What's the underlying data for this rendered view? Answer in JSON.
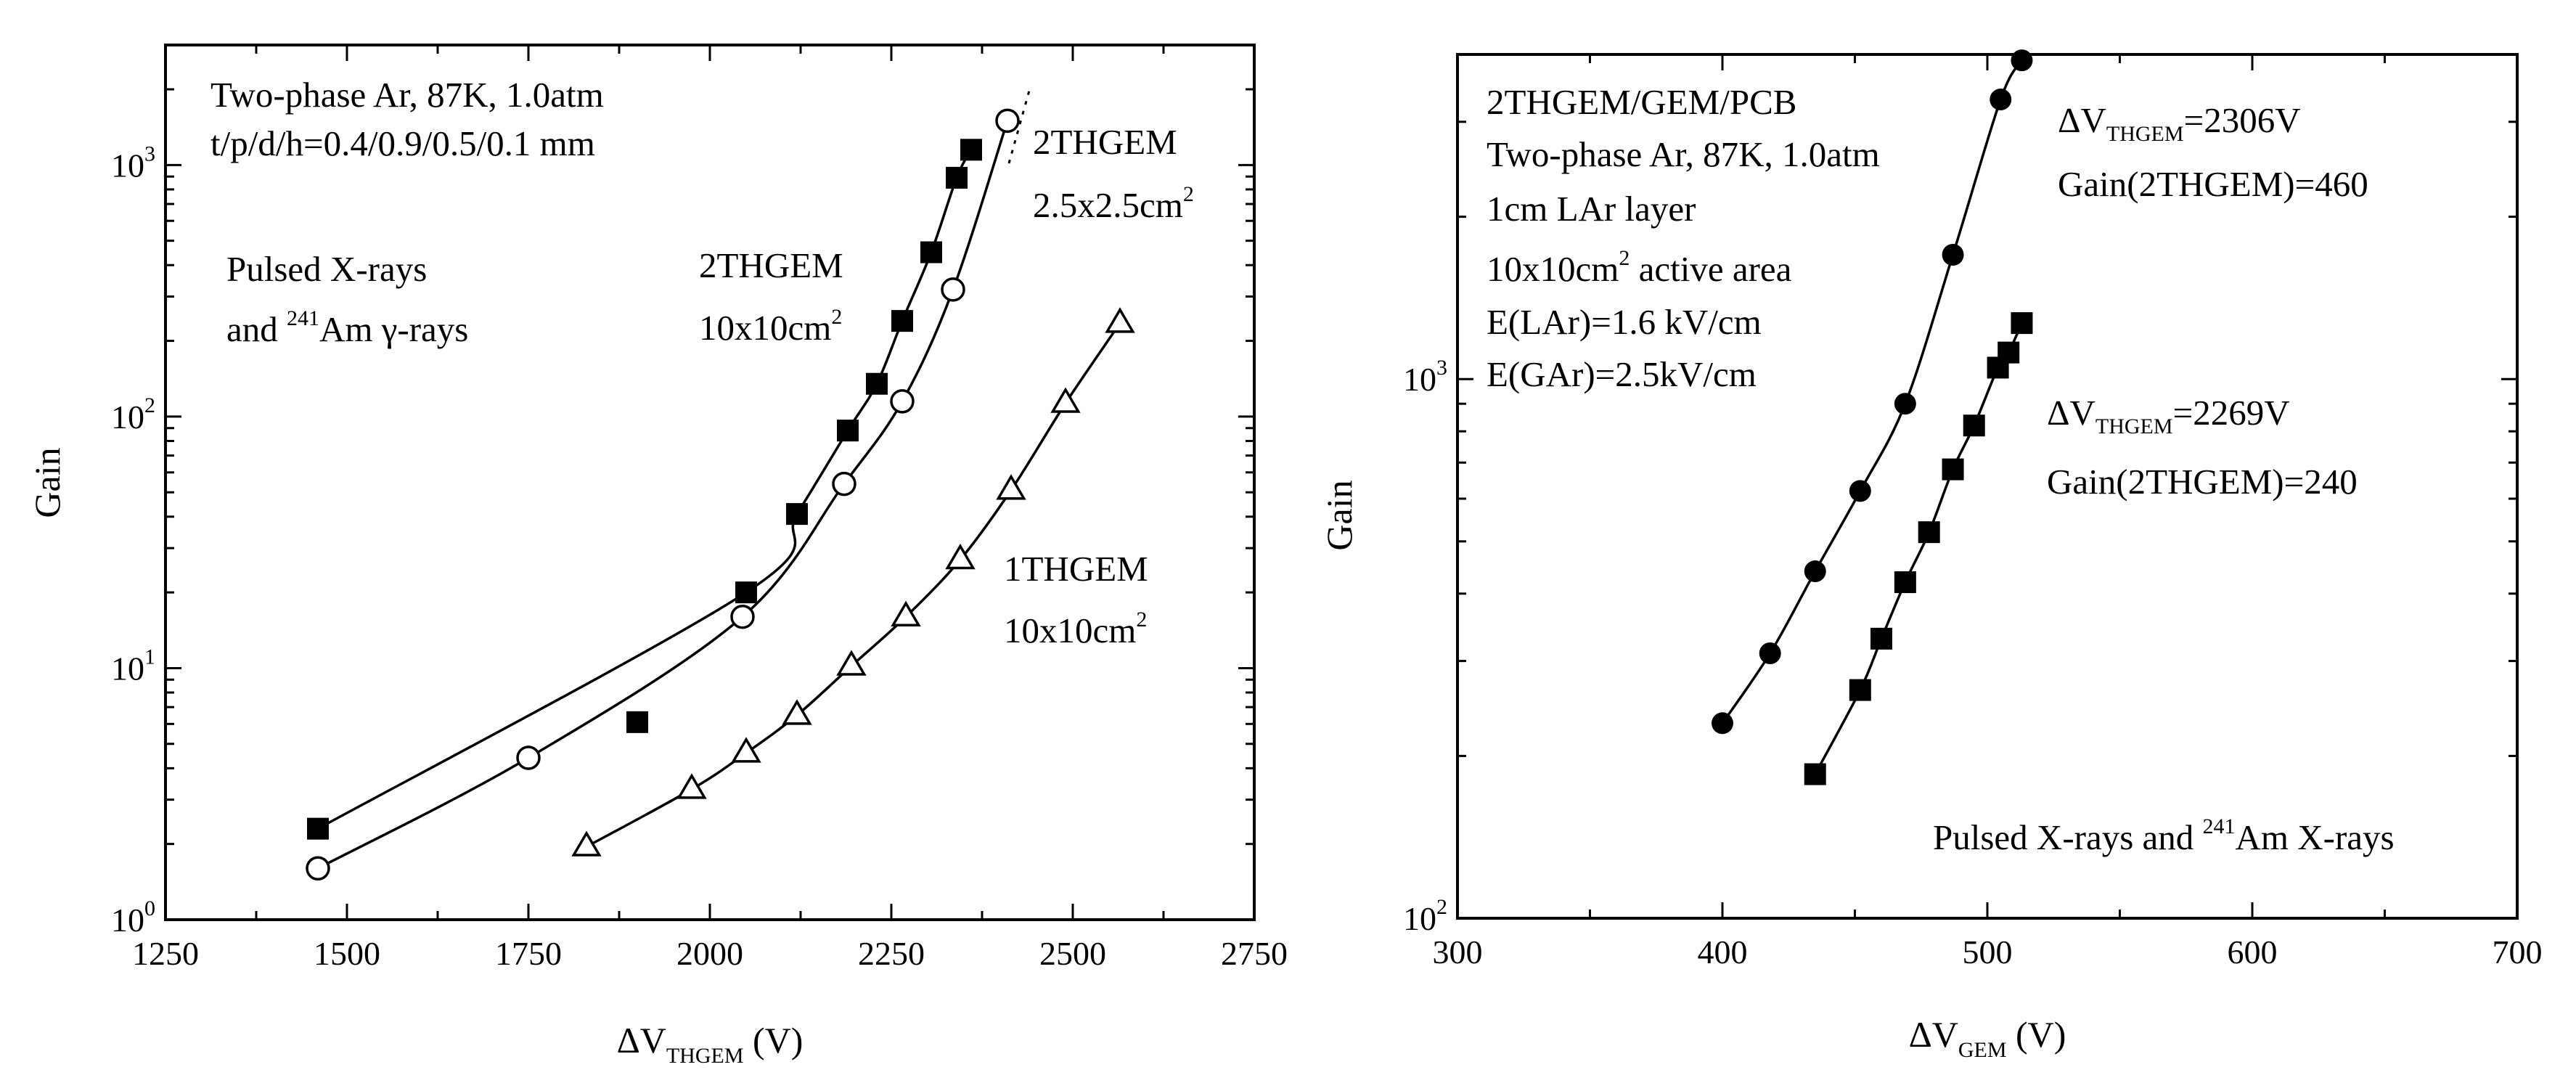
{
  "chart_data": [
    {
      "type": "scatter",
      "panel": "left",
      "yscale": "log",
      "xlabel_main": "ΔV",
      "xlabel_sub": "THGEM",
      "xlabel_unit": " (V)",
      "ylabel": "Gain",
      "xlim": [
        1250,
        2750
      ],
      "ylim": [
        1,
        3000
      ],
      "xticks": [
        1250,
        1500,
        1750,
        2000,
        2250,
        2500,
        2750
      ],
      "yticks": [
        {
          "value": 1,
          "base": "10",
          "exp": "0"
        },
        {
          "value": 10,
          "base": "10",
          "exp": "1"
        },
        {
          "value": 100,
          "base": "10",
          "exp": "2"
        },
        {
          "value": 1000,
          "base": "10",
          "exp": "3"
        }
      ],
      "annotations": {
        "conditions_line1": "Two-phase Ar, 87K, 1.0atm",
        "conditions_line2": "t/p/d/h=0.4/0.9/0.5/0.1 mm",
        "source_line1": "Pulsed X-rays",
        "source_line2_a": "and ",
        "source_line2_sup": "241",
        "source_line2_b": "Am γ-rays"
      },
      "series": [
        {
          "name": "2THGEM 10x10cm2",
          "marker": "filled-square",
          "label_line1": "2THGEM",
          "label_line2": "10x10cm",
          "label_sup": "2",
          "x": [
            1460,
            1900,
            2050,
            2120,
            2190,
            2230,
            2265,
            2305,
            2340,
            2360
          ],
          "y": [
            2.3,
            6.1,
            20,
            41,
            88,
            135,
            240,
            450,
            890,
            1150
          ]
        },
        {
          "name": "2THGEM 2.5x2.5cm2",
          "marker": "open-circle",
          "label_line1": "2THGEM",
          "label_line2": "2.5x2.5cm",
          "label_sup": "2",
          "x": [
            1460,
            1750,
            2045,
            2185,
            2265,
            2335,
            2410
          ],
          "y": [
            1.6,
            4.4,
            16,
            54,
            115,
            320,
            1500
          ]
        },
        {
          "name": "1THGEM 10x10cm2",
          "marker": "open-triangle",
          "label_line1": "1THGEM",
          "label_line2": "10x10cm",
          "label_sup": "2",
          "x": [
            1830,
            1975,
            2050,
            2120,
            2195,
            2270,
            2345,
            2415,
            2490,
            2565
          ],
          "y": [
            1.95,
            3.3,
            4.6,
            6.5,
            10.2,
            16,
            27,
            51,
            113,
            235
          ]
        }
      ]
    },
    {
      "type": "scatter",
      "panel": "right",
      "yscale": "log",
      "xlabel_main": "ΔV",
      "xlabel_sub": "GEM",
      "xlabel_unit": " (V)",
      "ylabel": "Gain",
      "xlim": [
        300,
        700
      ],
      "ylim": [
        100,
        4000
      ],
      "xticks": [
        300,
        400,
        500,
        600,
        700
      ],
      "yticks": [
        {
          "value": 100,
          "base": "10",
          "exp": "2"
        },
        {
          "value": 1000,
          "base": "10",
          "exp": "3"
        }
      ],
      "annotations": {
        "lines": [
          "2THGEM/GEM/PCB",
          "Two-phase Ar, 87K, 1.0atm",
          "1cm LAr layer"
        ],
        "area_a": "10x10cm",
        "area_sup": "2",
        "area_b": " active area",
        "field1": "E(LAr)=1.6 kV/cm",
        "field2": "E(GAr)=2.5kV/cm",
        "source_a": "Pulsed X-rays and ",
        "source_sup": "241",
        "source_b": "Am X-rays"
      },
      "series": [
        {
          "name": "ΔV_THGEM=2306V",
          "marker": "filled-circle",
          "label_dv": "ΔV",
          "label_sub": "THGEM",
          "label_val": "=2306V",
          "label_gain": "Gain(2THGEM)=460",
          "x": [
            400,
            418,
            435,
            452,
            469,
            487,
            505,
            513
          ],
          "y": [
            230,
            310,
            440,
            620,
            900,
            1700,
            3300,
            3900
          ]
        },
        {
          "name": "ΔV_THGEM=2269V",
          "marker": "filled-square",
          "label_dv": "ΔV",
          "label_sub": "THGEM",
          "label_val": "=2269V",
          "label_gain": "Gain(2THGEM)=240",
          "x": [
            435,
            452,
            460,
            469,
            478,
            487,
            495,
            504,
            508,
            513
          ],
          "y": [
            185,
            265,
            330,
            420,
            520,
            680,
            820,
            1050,
            1120,
            1270
          ]
        }
      ]
    }
  ]
}
